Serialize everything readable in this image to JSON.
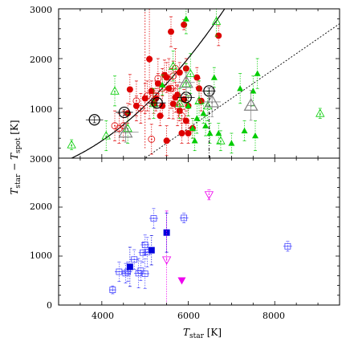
{
  "chart_data": [
    {
      "type": "scatter",
      "panel": "top",
      "xlim": [
        3000,
        9500
      ],
      "ylim": [
        0,
        3000
      ],
      "ylim_top_label": "3000",
      "yticks": [
        1000,
        2000,
        3000
      ],
      "xticks": [
        4000,
        6000,
        8000
      ],
      "show_x_tick_labels": false,
      "grid": false,
      "colors": {
        "red": "#dd0000",
        "green": "#00cc00",
        "black": "#000000",
        "gray": "#808080"
      },
      "series": [
        {
          "marker": "filled-circle",
          "color": "#dd0000",
          "x": [
            4650,
            5100,
            5250,
            5500,
            5600,
            5700,
            5900,
            5950,
            5000,
            5150,
            5350,
            5450,
            5550,
            5800,
            5900,
            6000,
            6200,
            6250,
            4600,
            4800,
            5200,
            5400,
            5650,
            5750,
            5950,
            6100,
            6300,
            6700,
            5300,
            5800,
            6000,
            5500,
            5850
          ],
          "y": [
            1380,
            1990,
            1200,
            1620,
            2540,
            1220,
            2680,
            1800,
            1200,
            1350,
            850,
            1670,
            1400,
            950,
            1180,
            1050,
            1620,
            1400,
            900,
            1050,
            1100,
            1050,
            1090,
            1270,
            750,
            600,
            1150,
            2460,
            1500,
            1720,
            500,
            350,
            500
          ],
          "yerr": [
            300,
            1200,
            200,
            300,
            300,
            300,
            100,
            200,
            300,
            200,
            200,
            300,
            600,
            200,
            200,
            200,
            200,
            200,
            200,
            200,
            200,
            200,
            300,
            200,
            200,
            200,
            200,
            200,
            200,
            200,
            200,
            300,
            200
          ]
        },
        {
          "marker": "open-circle-dot",
          "color": "#dd0000",
          "x": [
            4300,
            4400,
            4800,
            4900,
            5050,
            5150,
            5300,
            5400,
            5600,
            5700,
            5750,
            5850,
            5250,
            5650,
            4500
          ],
          "y": [
            650,
            600,
            1150,
            1000,
            1250,
            380,
            1600,
            1400,
            1400,
            1800,
            1050,
            850,
            1250,
            1650,
            650
          ],
          "yerr": [
            300,
            300,
            400,
            300,
            300,
            300,
            400,
            400,
            400,
            400,
            400,
            300,
            300,
            300,
            300
          ]
        },
        {
          "marker": "filled-triangle",
          "color": "#00cc00",
          "x": [
            5400,
            5950,
            6000,
            6100,
            6150,
            6200,
            6350,
            6600,
            6700,
            7000,
            7200,
            7300,
            7500,
            7550,
            7600,
            6500,
            6400
          ],
          "y": [
            1470,
            2800,
            1050,
            600,
            350,
            800,
            900,
            1620,
            500,
            300,
            1400,
            550,
            1350,
            450,
            1700,
            500,
            650
          ],
          "yerr": [
            200,
            300,
            200,
            200,
            200,
            300,
            200,
            200,
            200,
            200,
            300,
            200,
            300,
            300,
            300,
            200,
            200
          ]
        },
        {
          "marker": "open-triangle-dot",
          "color": "#00cc00",
          "x": [
            3300,
            4100,
            4600,
            5200,
            5650,
            5800,
            5950,
            6050,
            6250,
            6450,
            6650,
            6750,
            9050,
            4300
          ],
          "y": [
            270,
            450,
            600,
            1100,
            1850,
            1100,
            1500,
            1700,
            1150,
            1050,
            2750,
            350,
            900,
            1350
          ],
          "yerr": [
            100,
            300,
            300,
            300,
            300,
            300,
            400,
            400,
            400,
            300,
            300,
            200,
            100,
            300
          ]
        },
        {
          "marker": "big-open-circle-plus",
          "color": "#000000",
          "x": [
            3830,
            4520,
            5280,
            5950,
            6480
          ],
          "y": [
            770,
            920,
            1110,
            1220,
            1350
          ],
          "xerr": [
            200,
            200,
            200,
            200,
            150
          ],
          "yerr": [
            60,
            60,
            60,
            60,
            60
          ]
        },
        {
          "marker": "big-open-triangle-dot",
          "color": "#808080",
          "x": [
            4550,
            5950,
            6550,
            7450
          ],
          "y": [
            520,
            1520,
            1130,
            1060
          ],
          "xerr": [
            300,
            200,
            200,
            100
          ],
          "yerr": [
            200,
            200,
            300,
            300
          ]
        }
      ],
      "curves": [
        {
          "style": "solid",
          "color": "#000000",
          "a": 0.000123,
          "b": -0.4,
          "c": -20
        },
        {
          "style": "dotted",
          "color": "#000000",
          "slope": 0.6,
          "intercept": -3000
        }
      ],
      "vlines": [
        {
          "x": 5000,
          "y0": 200,
          "y1": 2950,
          "color": "#dd0000",
          "style": "dotted"
        },
        {
          "x": 6480,
          "y0": 0,
          "y1": 1400,
          "color": "#000000",
          "style": "dash-dot"
        }
      ]
    },
    {
      "type": "scatter",
      "panel": "bottom",
      "xlim": [
        3000,
        9500
      ],
      "ylim": [
        0,
        3000
      ],
      "yticks": [
        0,
        1000,
        2000
      ],
      "xticks": [
        4000,
        6000,
        8000
      ],
      "xlabel_parts": {
        "base": "T",
        "sub": "star",
        "unit": " [K]"
      },
      "shared_ylabel_parts": {
        "T1": "T",
        "sub1": "star",
        "minus": " − ",
        "T2": "T",
        "sub2": "spot",
        "unit": " [K]"
      },
      "grid": false,
      "colors": {
        "blue": "#0000dd",
        "magenta": "#ee00ee",
        "lightblue": "#4444ff"
      },
      "series": [
        {
          "marker": "open-square-dot",
          "color": "#4444ff",
          "x": [
            4250,
            4400,
            4550,
            4600,
            4750,
            4900,
            4950,
            5000,
            5050,
            4850,
            5000,
            5200,
            5900,
            8300
          ],
          "y": [
            310,
            680,
            650,
            680,
            930,
            700,
            1070,
            1230,
            1080,
            650,
            640,
            1770,
            1780,
            1200
          ],
          "yerr": [
            80,
            200,
            200,
            200,
            200,
            200,
            200,
            200,
            300,
            300,
            300,
            200,
            100,
            100
          ],
          "xerr": [
            80,
            100,
            100,
            100,
            100,
            100,
            100,
            100,
            100,
            100,
            100,
            100,
            100,
            100
          ]
        },
        {
          "marker": "filled-square",
          "color": "#0000dd",
          "x": [
            4650,
            5150,
            5500
          ],
          "y": [
            780,
            1120,
            1480
          ],
          "yerr": [
            400,
            300,
            400
          ]
        },
        {
          "marker": "open-triangle-down-dot",
          "color": "#ee00ee",
          "x": [
            5500,
            6480
          ],
          "y": [
            920,
            2250
          ],
          "yerr": [
            1000,
            100
          ]
        },
        {
          "marker": "filled-triangle-down",
          "color": "#ee00ee",
          "x": [
            5850
          ],
          "y": [
            500
          ]
        }
      ]
    }
  ]
}
